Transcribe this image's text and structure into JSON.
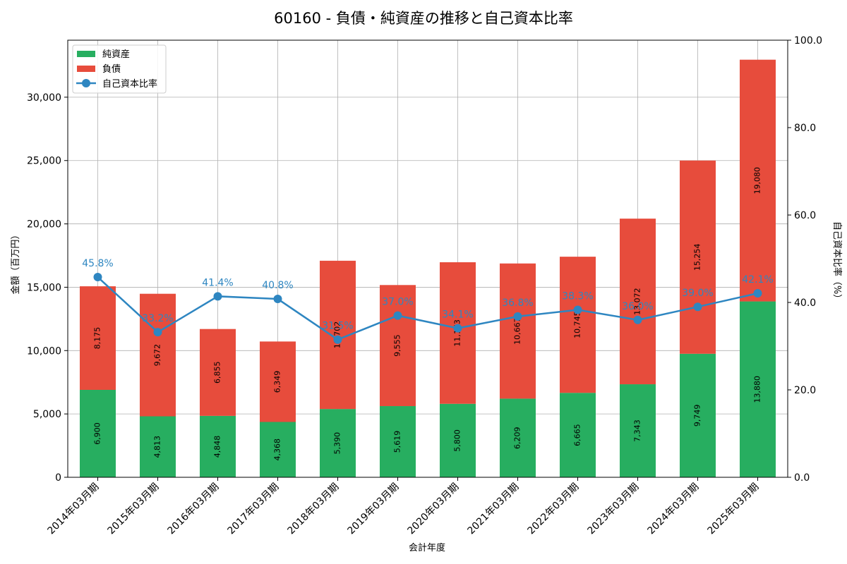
{
  "chart_data": {
    "type": "bar",
    "title": "60160 - 負債・純資産の推移と自己資本比率",
    "xlabel": "会計年度",
    "ylabel": "金額（百万円）",
    "y2label": "自己資本比率（%）",
    "ylim": [
      0,
      34500
    ],
    "y2lim": [
      0,
      100
    ],
    "yticks": [
      "0",
      "5,000",
      "10,000",
      "15,000",
      "20,000",
      "25,000",
      "30,000"
    ],
    "y2ticks": [
      "0.0",
      "20.0",
      "40.0",
      "60.0",
      "80.0",
      "100.0"
    ],
    "grid": true,
    "legend_position": "top-left",
    "categories": [
      "2014年03月期",
      "2015年03月期",
      "2016年03月期",
      "2017年03月期",
      "2018年03月期",
      "2019年03月期",
      "2020年03月期",
      "2021年03月期",
      "2022年03月期",
      "2023年03月期",
      "2024年03月期",
      "2025年03月期"
    ],
    "series": [
      {
        "name": "純資産",
        "kind": "bar-stacked",
        "color": "#27ae60",
        "values": [
          6900,
          4813,
          4848,
          4368,
          5390,
          5619,
          5800,
          6209,
          6665,
          7343,
          9749,
          13880
        ],
        "labels": [
          "6,900",
          "4,813",
          "4,848",
          "4,368",
          "5,390",
          "5,619",
          "5,800",
          "6,209",
          "6,665",
          "7,343",
          "9,749",
          "13,880"
        ]
      },
      {
        "name": "負債",
        "kind": "bar-stacked",
        "color": "#e74c3c",
        "values": [
          8175,
          9672,
          6855,
          6349,
          11702,
          9555,
          11173,
          10667,
          10745,
          13072,
          15254,
          19080
        ],
        "labels": [
          "8,175",
          "9,672",
          "6,855",
          "6,349",
          "11,702",
          "9,555",
          "11,173",
          "10,667",
          "10,745",
          "13,072",
          "15,254",
          "19,080"
        ]
      },
      {
        "name": "自己資本比率",
        "kind": "line",
        "axis": "right",
        "color": "#2e86c1",
        "values": [
          45.8,
          33.2,
          41.4,
          40.8,
          31.5,
          37.0,
          34.1,
          36.8,
          38.3,
          36.0,
          39.0,
          42.1
        ],
        "labels": [
          "45.8%",
          "33.2%",
          "41.4%",
          "40.8%",
          "31.5%",
          "37.0%",
          "34.1%",
          "36.8%",
          "38.3%",
          "36.0%",
          "39.0%",
          "42.1%"
        ]
      }
    ]
  }
}
